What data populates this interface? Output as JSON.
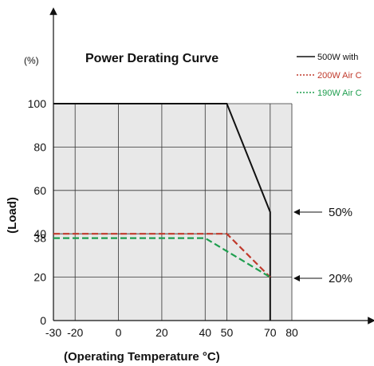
{
  "chart_data": {
    "type": "line",
    "title": "Power Derating Curve",
    "unit_label": "(%)",
    "ylabel": "(Load)",
    "xlabel": "(Operating Temperature °C)",
    "xlim": [
      -30,
      80
    ],
    "ylim": [
      0,
      100
    ],
    "x_ticks": [
      -30,
      -20,
      0,
      20,
      40,
      50,
      70,
      80
    ],
    "y_ticks": [
      0,
      20,
      38,
      40,
      60,
      80,
      100
    ],
    "x_tick_labels": [
      "-30",
      "-20",
      "0",
      "20",
      "40",
      "50",
      "70",
      "80"
    ],
    "y_tick_labels": [
      "0",
      "20",
      "38",
      "40",
      "60",
      "80",
      "100"
    ],
    "grid": true,
    "legend_position": "top-right",
    "series": [
      {
        "name": "500W with",
        "color": "#111111",
        "style": "solid",
        "x": [
          -30,
          50,
          70,
          70
        ],
        "y": [
          100,
          100,
          50,
          0
        ]
      },
      {
        "name": "200W Air C",
        "color": "#c0392b",
        "style": "dashed",
        "x": [
          -30,
          50,
          70
        ],
        "y": [
          40,
          40,
          20
        ]
      },
      {
        "name": "190W Air C",
        "color": "#1f9e4f",
        "style": "dashed",
        "x": [
          -30,
          40,
          70
        ],
        "y": [
          38,
          38,
          20
        ]
      }
    ],
    "annotations": [
      {
        "text": "50%",
        "y": 50
      },
      {
        "text": "20%",
        "y": 20
      }
    ]
  }
}
